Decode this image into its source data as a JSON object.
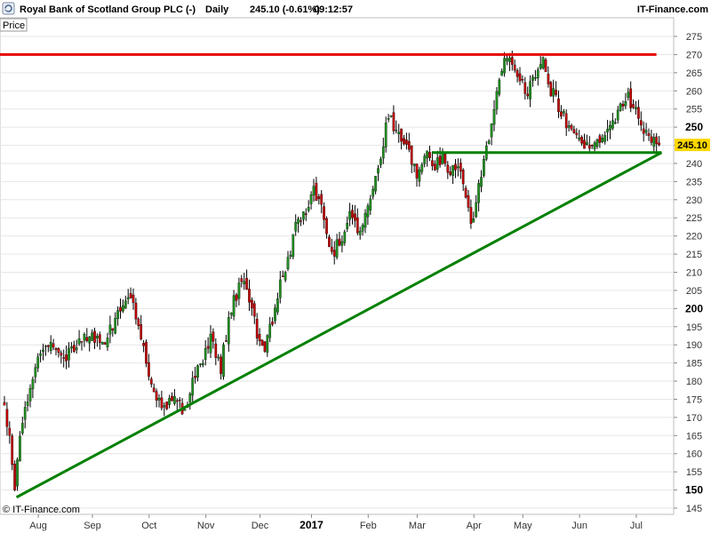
{
  "header": {
    "instrument": "Royal Bank of Scotland Group PLC (-)",
    "interval": "Daily",
    "price_change": "245.10 (-0.61%)",
    "time": "09:12:57",
    "brand": "IT-Finance.com"
  },
  "price_label": "Price",
  "copyright": "© IT-Finance.com",
  "last_price_tag": "245.10",
  "colors": {
    "bull": "#1f8f1f",
    "bear": "#c00000",
    "wick": "#000000",
    "resistance": "#e60000",
    "support": "#008000",
    "trendline": "#008000",
    "tag_bg": "#ffd700",
    "grid": "#e6e6e6"
  },
  "chart_data": {
    "type": "candlestick",
    "title": "Royal Bank of Scotland Group PLC (-)",
    "y_axis": {
      "min": 145,
      "max": 275,
      "ticks": [
        145,
        150,
        155,
        160,
        165,
        170,
        175,
        180,
        185,
        190,
        195,
        200,
        205,
        210,
        215,
        220,
        225,
        230,
        235,
        240,
        245,
        250,
        255,
        260,
        265,
        270,
        275
      ],
      "major_ticks": [
        150,
        200,
        250
      ]
    },
    "x_axis": {
      "labels": [
        "Aug",
        "Sep",
        "Oct",
        "Nov",
        "Dec",
        "2017",
        "Feb",
        "Mar",
        "Apr",
        "May",
        "Jun",
        "Jul"
      ],
      "major_labels": [
        "2017"
      ],
      "label_positions": [
        9,
        30,
        52,
        74,
        95,
        115,
        137,
        156,
        178,
        197,
        219,
        241
      ]
    },
    "num_bars": 255,
    "anchors": [
      [
        0,
        175
      ],
      [
        3,
        158
      ],
      [
        4,
        150
      ],
      [
        6,
        165
      ],
      [
        10,
        178
      ],
      [
        14,
        188
      ],
      [
        18,
        192
      ],
      [
        24,
        187
      ],
      [
        28,
        191
      ],
      [
        33,
        193
      ],
      [
        38,
        190
      ],
      [
        44,
        198
      ],
      [
        48,
        205
      ],
      [
        52,
        196
      ],
      [
        55,
        185
      ],
      [
        58,
        178
      ],
      [
        60,
        175
      ],
      [
        63,
        172
      ],
      [
        66,
        176
      ],
      [
        70,
        172
      ],
      [
        72,
        178
      ],
      [
        76,
        185
      ],
      [
        80,
        191
      ],
      [
        84,
        184
      ],
      [
        88,
        200
      ],
      [
        92,
        208
      ],
      [
        96,
        200
      ],
      [
        98,
        193
      ],
      [
        101,
        190
      ],
      [
        104,
        197
      ],
      [
        107,
        207
      ],
      [
        110,
        214
      ],
      [
        113,
        222
      ],
      [
        116,
        226
      ],
      [
        120,
        233
      ],
      [
        123,
        228
      ],
      [
        126,
        218
      ],
      [
        128,
        216
      ],
      [
        131,
        220
      ],
      [
        134,
        226
      ],
      [
        137,
        222
      ],
      [
        140,
        226
      ],
      [
        143,
        232
      ],
      [
        146,
        240
      ],
      [
        149,
        254
      ],
      [
        152,
        248
      ],
      [
        155,
        246
      ],
      [
        158,
        240
      ],
      [
        161,
        237
      ],
      [
        164,
        244
      ],
      [
        167,
        240
      ],
      [
        170,
        242
      ],
      [
        173,
        238
      ],
      [
        176,
        240
      ],
      [
        179,
        232
      ],
      [
        181,
        223
      ],
      [
        183,
        230
      ],
      [
        186,
        240
      ],
      [
        188,
        246
      ],
      [
        190,
        255
      ],
      [
        192,
        263
      ],
      [
        194,
        268
      ],
      [
        197,
        267
      ],
      [
        200,
        262
      ],
      [
        203,
        260
      ],
      [
        206,
        265
      ],
      [
        209,
        268
      ],
      [
        212,
        260
      ],
      [
        215,
        256
      ],
      [
        218,
        251
      ],
      [
        221,
        249
      ],
      [
        224,
        247
      ],
      [
        227,
        244
      ],
      [
        230,
        246
      ],
      [
        233,
        248
      ],
      [
        236,
        251
      ],
      [
        239,
        256
      ],
      [
        242,
        258
      ],
      [
        245,
        255
      ],
      [
        248,
        250
      ],
      [
        250,
        248
      ],
      [
        252,
        247
      ],
      [
        254,
        245.1
      ]
    ],
    "resistance_line": {
      "value": 270,
      "start_bar": 0,
      "end_bar": 254
    },
    "support_line": {
      "value": 243,
      "start_bar": 166,
      "end_bar": 255
    },
    "trend_line": {
      "start": [
        4,
        148
      ],
      "end": [
        255,
        243
      ]
    },
    "last_price": 245.1
  }
}
